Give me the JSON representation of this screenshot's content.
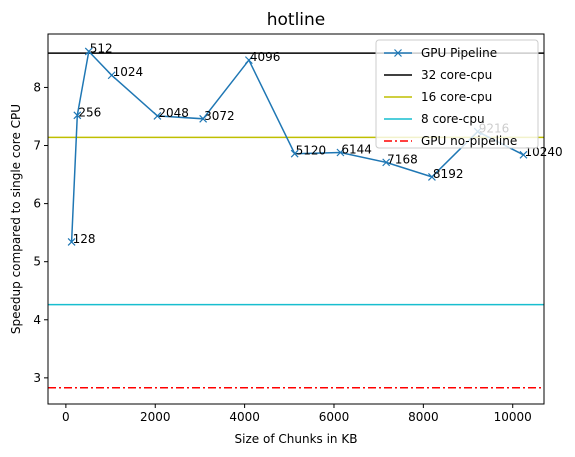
{
  "chart_data": {
    "type": "line",
    "title": "hotline",
    "xlabel": "Size of Chunks in KB",
    "ylabel": "Speedup compared to single core CPU",
    "xlim": [
      -400,
      10700
    ],
    "ylim": [
      2.55,
      8.92
    ],
    "xticks": [
      0,
      2000,
      4000,
      6000,
      8000,
      10000
    ],
    "yticks": [
      3,
      4,
      5,
      6,
      7,
      8
    ],
    "grid": false,
    "legend_position": "upper-right",
    "series": [
      {
        "name": "GPU Pipeline",
        "style": "line-with-x-markers",
        "color": "#1f77b4",
        "x": [
          128,
          256,
          512,
          1024,
          2048,
          3072,
          4096,
          5120,
          6144,
          7168,
          8192,
          9216,
          10240
        ],
        "y": [
          5.34,
          7.52,
          8.62,
          8.21,
          7.51,
          7.46,
          8.47,
          6.86,
          6.88,
          6.71,
          6.46,
          7.24,
          6.84
        ],
        "point_labels": [
          "128",
          "256",
          "512",
          "1024",
          "2048",
          "3072",
          "4096",
          "5120",
          "6144",
          "7168",
          "8192",
          "9216",
          "10240"
        ]
      },
      {
        "name": "32 core-cpu",
        "style": "solid",
        "color": "#000000",
        "y": 8.59
      },
      {
        "name": "16 core-cpu",
        "style": "solid",
        "color": "#bfbf00",
        "y": 7.14
      },
      {
        "name": "8 core-cpu",
        "style": "solid",
        "color": "#17becf",
        "y": 4.26
      },
      {
        "name": "GPU no-pipeline",
        "style": "dash-dot",
        "color": "#ff0000",
        "y": 2.83
      }
    ]
  }
}
